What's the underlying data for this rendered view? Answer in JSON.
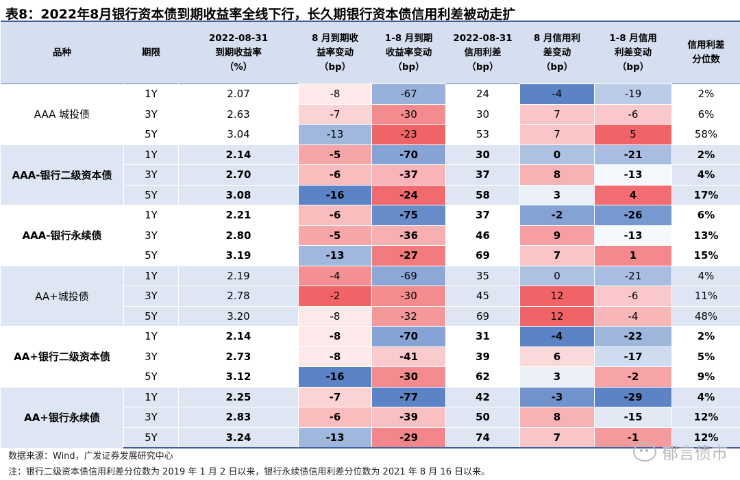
{
  "title": "表8：2022年8月银行资本债到期收益率全线下行，长久期银行资本债信用利差被动走扩",
  "headers": [
    [
      "品种"
    ],
    [
      "期限"
    ],
    [
      "2022-08-31",
      "到期收益率",
      "（%）"
    ],
    [
      "8 月到期收",
      "益率变动",
      "（bp）"
    ],
    [
      "1-8 月到期",
      "收益率变动",
      "（bp）"
    ],
    [
      "2022-08-31",
      "信用利差",
      "（bp）"
    ],
    [
      "8 月信用利",
      "差变动",
      "（bp）"
    ],
    [
      "1-8 月信用",
      "利差变动",
      "（bp）"
    ],
    [
      "信用利差",
      "分位数"
    ]
  ],
  "groups": [
    {
      "name": "AAA 城投债",
      "bold": false,
      "rows": [
        {
          "term": "1Y",
          "ytm": "2.07",
          "m8": -8,
          "ytd": -67,
          "spread": "24",
          "sm8": -4,
          "sytd": -19,
          "pct": "2%"
        },
        {
          "term": "3Y",
          "ytm": "2.63",
          "m8": -7,
          "ytd": -30,
          "spread": "30",
          "sm8": 7,
          "sytd": -6,
          "pct": "6%"
        },
        {
          "term": "5Y",
          "ytm": "3.04",
          "m8": -13,
          "ytd": -23,
          "spread": "53",
          "sm8": 7,
          "sytd": 5,
          "pct": "58%"
        }
      ]
    },
    {
      "name": "AAA-银行二级资本债",
      "bold": true,
      "rows": [
        {
          "term": "1Y",
          "ytm": "2.14",
          "m8": -5,
          "ytd": -70,
          "spread": "30",
          "sm8": 0,
          "sytd": -21,
          "pct": "2%"
        },
        {
          "term": "3Y",
          "ytm": "2.70",
          "m8": -6,
          "ytd": -37,
          "spread": "37",
          "sm8": 8,
          "sytd": -13,
          "pct": "4%"
        },
        {
          "term": "5Y",
          "ytm": "3.08",
          "m8": -16,
          "ytd": -24,
          "spread": "58",
          "sm8": 3,
          "sytd": 4,
          "pct": "17%"
        }
      ]
    },
    {
      "name": "AAA-银行永续债",
      "bold": true,
      "rows": [
        {
          "term": "1Y",
          "ytm": "2.21",
          "m8": -6,
          "ytd": -75,
          "spread": "37",
          "sm8": -2,
          "sytd": -26,
          "pct": "6%"
        },
        {
          "term": "3Y",
          "ytm": "2.80",
          "m8": -5,
          "ytd": -36,
          "spread": "46",
          "sm8": 9,
          "sytd": -13,
          "pct": "13%"
        },
        {
          "term": "5Y",
          "ytm": "3.19",
          "m8": -13,
          "ytd": -27,
          "spread": "69",
          "sm8": 7,
          "sytd": 1,
          "pct": "15%"
        }
      ]
    },
    {
      "name": "AA+城投债",
      "bold": false,
      "rows": [
        {
          "term": "1Y",
          "ytm": "2.19",
          "m8": -4,
          "ytd": -69,
          "spread": "35",
          "sm8": 0,
          "sytd": -21,
          "pct": "4%"
        },
        {
          "term": "3Y",
          "ytm": "2.78",
          "m8": -2,
          "ytd": -30,
          "spread": "45",
          "sm8": 12,
          "sytd": -6,
          "pct": "11%"
        },
        {
          "term": "5Y",
          "ytm": "3.20",
          "m8": -8,
          "ytd": -32,
          "spread": "69",
          "sm8": 12,
          "sytd": -4,
          "pct": "48%"
        }
      ]
    },
    {
      "name": "AA+银行二级资本债",
      "bold": true,
      "rows": [
        {
          "term": "1Y",
          "ytm": "2.14",
          "m8": -8,
          "ytd": -70,
          "spread": "31",
          "sm8": -4,
          "sytd": -22,
          "pct": "2%"
        },
        {
          "term": "3Y",
          "ytm": "2.73",
          "m8": -8,
          "ytd": -41,
          "spread": "39",
          "sm8": 6,
          "sytd": -17,
          "pct": "5%"
        },
        {
          "term": "5Y",
          "ytm": "3.12",
          "m8": -16,
          "ytd": -30,
          "spread": "62",
          "sm8": 3,
          "sytd": -2,
          "pct": "9%"
        }
      ]
    },
    {
      "name": "AA+银行永续债",
      "bold": true,
      "rows": [
        {
          "term": "1Y",
          "ytm": "2.25",
          "m8": -7,
          "ytd": -77,
          "spread": "42",
          "sm8": -3,
          "sytd": -29,
          "pct": "4%"
        },
        {
          "term": "3Y",
          "ytm": "2.83",
          "m8": -6,
          "ytd": -39,
          "spread": "50",
          "sm8": 8,
          "sytd": -15,
          "pct": "12%"
        },
        {
          "term": "5Y",
          "ytm": "3.24",
          "m8": -13,
          "ytd": -29,
          "spread": "74",
          "sm8": 7,
          "sytd": -1,
          "pct": "12%"
        }
      ]
    }
  ],
  "footer": {
    "source": "数据来源：Wind，广发证券发展研究中心",
    "note": "注：银行二级资本债信用利差分位数为 2019 年 1 月 2 日以来，银行永续债信用利差分位数为 2021 年 8 月 16 日以来。"
  },
  "watermark": "郁言债市",
  "colors": {
    "header_bg": "#d5dff0",
    "alt_group_bg": "#dfe6f3",
    "heat_low": "#5b83c6",
    "heat_high": "#f06468"
  }
}
